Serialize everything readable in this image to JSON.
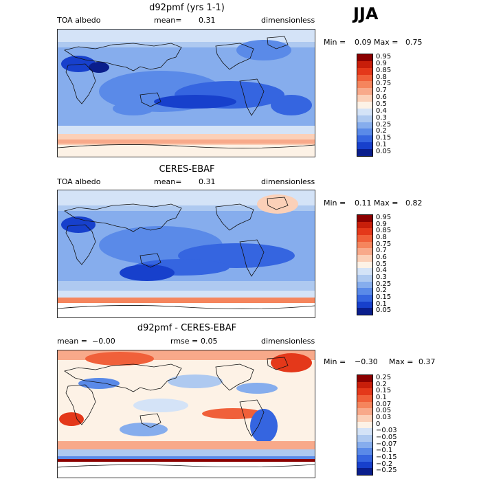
{
  "season": "JJA",
  "panels": [
    {
      "title": "d92pmf (yrs 1-1)",
      "left_label": "TOA albedo",
      "mid_label": "mean=",
      "mid_value": "0.31",
      "right_label": "dimensionless",
      "min_label": "Min =",
      "min_value": "0.09",
      "max_label": "Max =",
      "max_value": "0.75",
      "levels": [
        "0.95",
        "0.9",
        "0.85",
        "0.8",
        "0.75",
        "0.7",
        "0.6",
        "0.5",
        "0.4",
        "0.3",
        "0.25",
        "0.2",
        "0.15",
        "0.1",
        "0.05"
      ],
      "colors": [
        "#8b0000",
        "#c81e0a",
        "#e4381a",
        "#f0603a",
        "#f5855d",
        "#f8a98a",
        "#fbd0b8",
        "#fdf2e6",
        "#d4e3f7",
        "#aec9f0",
        "#86aded",
        "#5a8ae8",
        "#3565e0",
        "#1740cc",
        "#0a1e8c"
      ]
    },
    {
      "title": "CERES-EBAF",
      "left_label": "TOA albedo",
      "mid_label": "mean=",
      "mid_value": "0.31",
      "right_label": "dimensionless",
      "min_label": "Min =",
      "min_value": "0.11",
      "max_label": "Max =",
      "max_value": "0.82",
      "levels": [
        "0.95",
        "0.9",
        "0.85",
        "0.8",
        "0.75",
        "0.7",
        "0.6",
        "0.5",
        "0.4",
        "0.3",
        "0.25",
        "0.2",
        "0.15",
        "0.1",
        "0.05"
      ],
      "colors": [
        "#8b0000",
        "#c81e0a",
        "#e4381a",
        "#f0603a",
        "#f5855d",
        "#f8a98a",
        "#fbd0b8",
        "#fdf2e6",
        "#d4e3f7",
        "#aec9f0",
        "#86aded",
        "#5a8ae8",
        "#3565e0",
        "#1740cc",
        "#0a1e8c"
      ]
    },
    {
      "title": "d92pmf - CERES-EBAF",
      "left_label": "mean =",
      "left_value": "−0.00",
      "mid_label": "rmse =",
      "mid_value": "0.05",
      "right_label": "dimensionless",
      "min_label": "Min =",
      "min_value": "−0.30",
      "max_label": "Max =",
      "max_value": "0.37",
      "levels": [
        "0.25",
        "0.2",
        "0.15",
        "0.1",
        "0.07",
        "0.05",
        "0.03",
        "0",
        "−0.03",
        "−0.05",
        "−0.07",
        "−0.1",
        "−0.15",
        "−0.2",
        "−0.25"
      ],
      "colors": [
        "#8b0000",
        "#c81e0a",
        "#e4381a",
        "#f0603a",
        "#f5855d",
        "#f8a98a",
        "#fbd0b8",
        "#fdf2e6",
        "#d4e3f7",
        "#aec9f0",
        "#86aded",
        "#5a8ae8",
        "#3565e0",
        "#1740cc",
        "#0a1e8c"
      ]
    }
  ]
}
